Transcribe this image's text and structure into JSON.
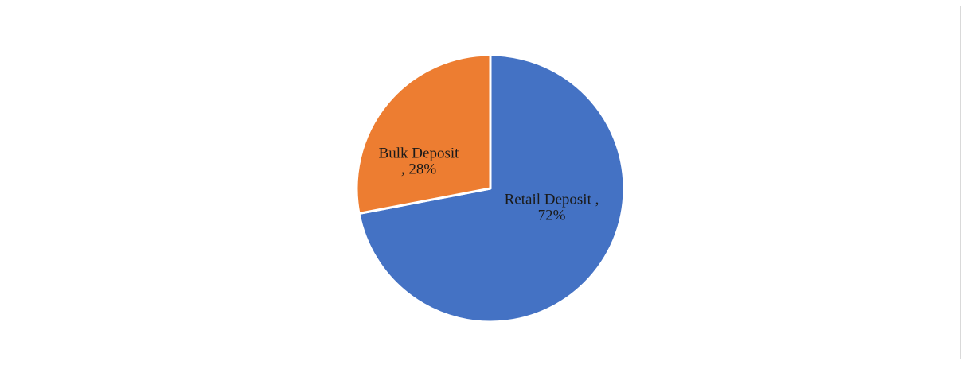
{
  "chart_data": {
    "type": "pie",
    "title": "",
    "series": [
      {
        "slices": [
          {
            "label": "Retail Deposit",
            "value": 72,
            "label_lines": [
              "Retail Deposit ,",
              "72%"
            ],
            "color": "#4472c4"
          },
          {
            "label": "Bulk Deposit",
            "value": 28,
            "label_lines": [
              "Bulk Deposit",
              ", 28%"
            ],
            "color": "#ed7d31"
          }
        ]
      }
    ],
    "legend": "none",
    "slice_border_color": "#ffffff"
  }
}
